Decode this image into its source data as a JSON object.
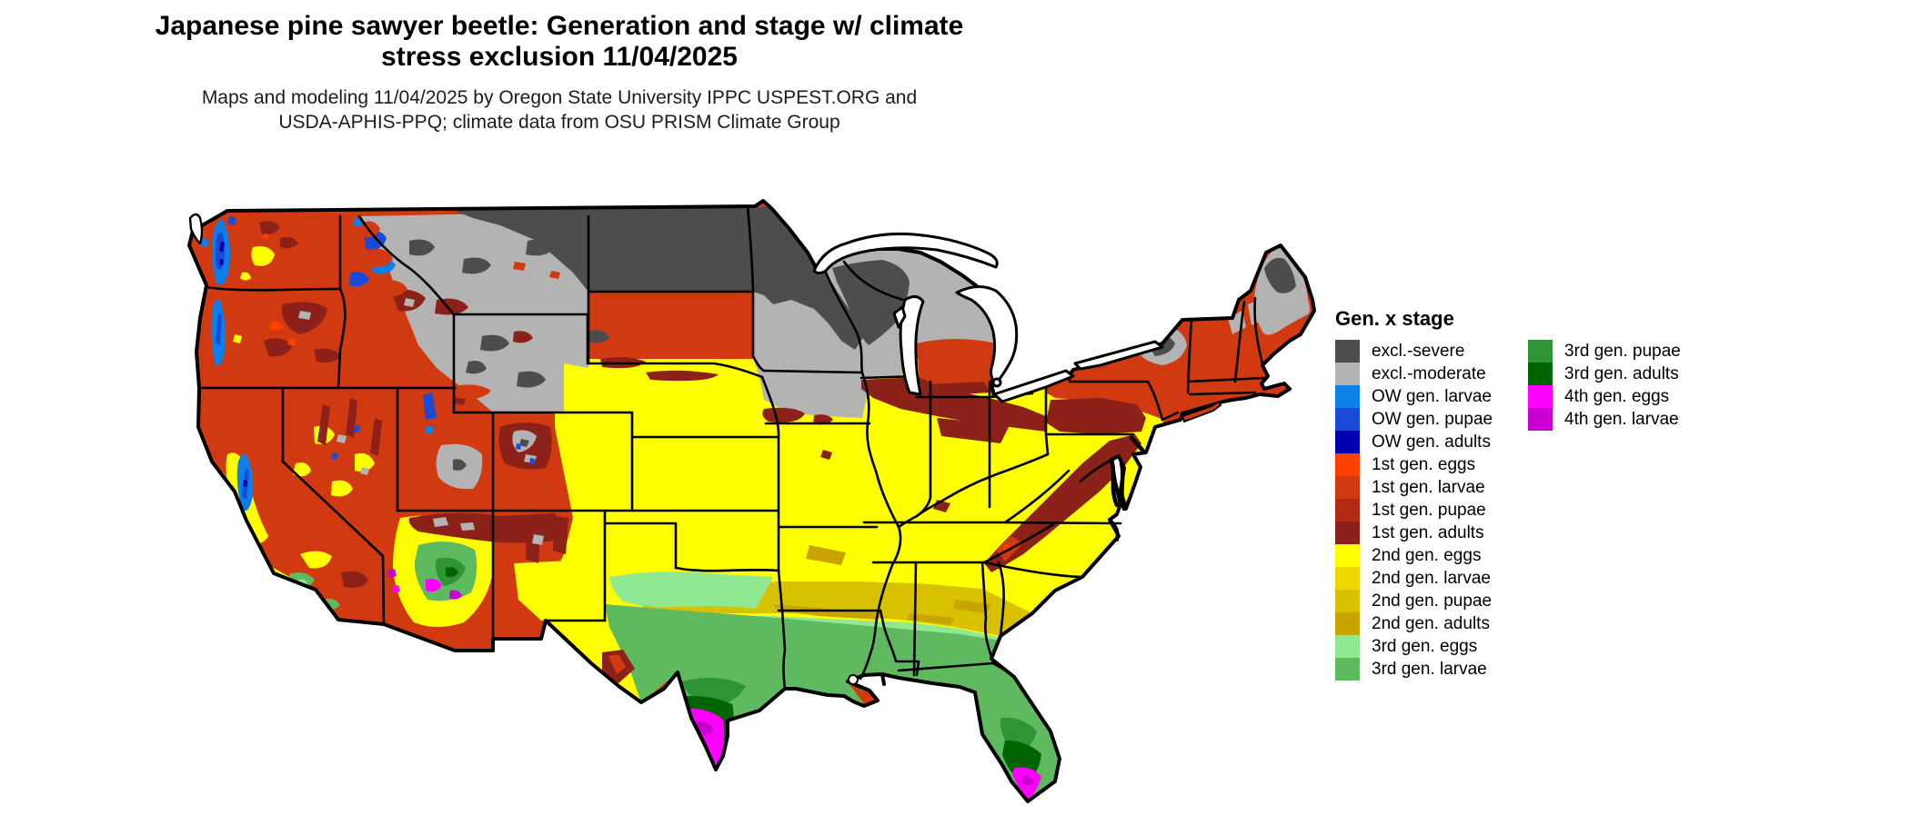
{
  "title": {
    "line1": "Japanese pine sawyer beetle: Generation and stage w/ climate",
    "line2": "stress exclusion 11/04/2025"
  },
  "subtitle": {
    "line1": "Maps and modeling 11/04/2025 by Oregon State University IPPC USPEST.ORG and",
    "line2": "USDA-APHIS-PPQ; climate data from OSU PRISM Climate Group"
  },
  "legend": {
    "title": "Gen. x stage",
    "columns": [
      [
        {
          "key": "excl_severe",
          "label": "excl.-severe",
          "color": "#4d4d4d"
        },
        {
          "key": "excl_moderate",
          "label": "excl.-moderate",
          "color": "#b3b3b3"
        },
        {
          "key": "ow_larvae",
          "label": "OW gen. larvae",
          "color": "#0d7fe8"
        },
        {
          "key": "ow_pupae",
          "label": "OW gen. pupae",
          "color": "#1a4bd8"
        },
        {
          "key": "ow_adults",
          "label": "OW gen. adults",
          "color": "#0000b0"
        },
        {
          "key": "g1_eggs",
          "label": "1st gen. eggs",
          "color": "#fb4000"
        },
        {
          "key": "g1_larvae",
          "label": "1st gen. larvae",
          "color": "#d13a10"
        },
        {
          "key": "g1_pupae",
          "label": "1st gen. pupae",
          "color": "#b22a14"
        },
        {
          "key": "g1_adults",
          "label": "1st gen. adults",
          "color": "#8c2119"
        },
        {
          "key": "g2_eggs",
          "label": "2nd gen. eggs",
          "color": "#ffff00"
        },
        {
          "key": "g2_larvae",
          "label": "2nd gen. larvae",
          "color": "#ecd800"
        },
        {
          "key": "g2_pupae",
          "label": "2nd gen. pupae",
          "color": "#d8c100"
        },
        {
          "key": "g2_adults",
          "label": "2nd gen. adults",
          "color": "#c7a400"
        },
        {
          "key": "g3_eggs",
          "label": "3rd gen. eggs",
          "color": "#90e890"
        },
        {
          "key": "g3_larvae",
          "label": "3rd gen. larvae",
          "color": "#5fba5f"
        }
      ],
      [
        {
          "key": "g3_pupae",
          "label": "3rd gen. pupae",
          "color": "#2f9434"
        },
        {
          "key": "g3_adults",
          "label": "3rd gen. adults",
          "color": "#006400"
        },
        {
          "key": "g4_eggs",
          "label": "4th gen. eggs",
          "color": "#ff00ff"
        },
        {
          "key": "g4_larvae",
          "label": "4th gen. larvae",
          "color": "#c900cf"
        }
      ]
    ]
  },
  "map": {
    "region": "Contiguous United States",
    "palette": {
      "excl_severe": "#4d4d4d",
      "excl_moderate": "#b3b3b3",
      "ow_larvae": "#0d7fe8",
      "ow_pupae": "#1a4bd8",
      "ow_adults": "#0000b0",
      "g1_eggs": "#fb4000",
      "g1_larvae": "#d13a10",
      "g1_pupae": "#b22a14",
      "g1_adults": "#8c2119",
      "g2_eggs": "#ffff00",
      "g2_larvae": "#ecd800",
      "g2_pupae": "#d8c100",
      "g2_adults": "#c7a400",
      "g3_eggs": "#90e890",
      "g3_larvae": "#5fba5f",
      "g3_pupae": "#2f9434",
      "g3_adults": "#006400",
      "g4_eggs": "#ff00ff",
      "g4_larvae": "#c900cf",
      "border": "#000000",
      "water": "#ffffff"
    }
  }
}
